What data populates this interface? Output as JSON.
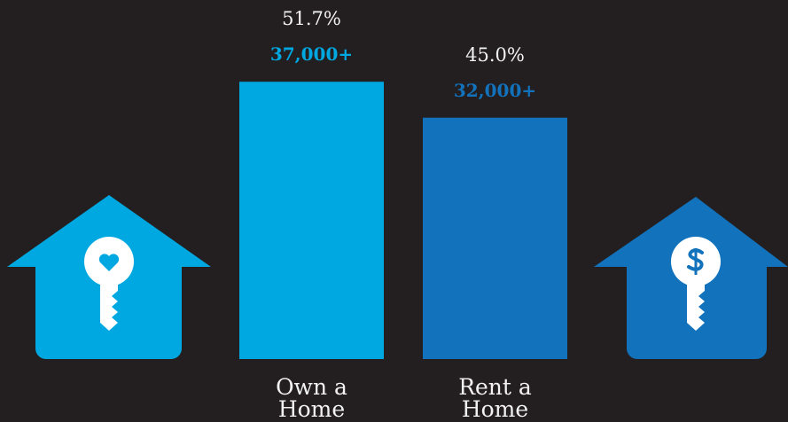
{
  "chart_data": {
    "type": "bar",
    "categories": [
      "Own a Home",
      "Rent a Home"
    ],
    "values": [
      51.7,
      45.0
    ],
    "value_labels": [
      "51.7%",
      "45.0%"
    ],
    "count_labels": [
      "37,000+",
      "32,000+"
    ],
    "colors": [
      "#00a8e1",
      "#1272bc"
    ]
  }
}
